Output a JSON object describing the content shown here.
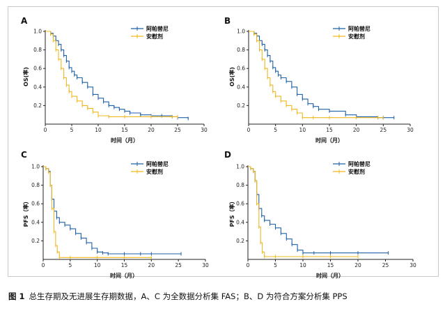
{
  "colors": {
    "drug": "#1f62a8",
    "placebo": "#f0b81f",
    "axis": "#222222"
  },
  "caption": {
    "label": "图 1",
    "text": "总生存期及无进展生存期数据，A、C 为全数据分析集 FAS；B、D 为符合方案分析集 PPS"
  },
  "chart_data": [
    {
      "type": "line",
      "panel": "A",
      "xlabel": "时间（月）",
      "ylabel": "OS(率)",
      "xlim": [
        0,
        30
      ],
      "ylim": [
        0,
        1.0
      ],
      "xticks": [
        0,
        5,
        10,
        15,
        20,
        25,
        30
      ],
      "yticks": [
        0.2,
        0.4,
        0.6,
        0.8,
        1.0
      ],
      "legend": [
        "阿帕替尼",
        "安慰剂"
      ],
      "series": [
        {
          "name": "阿帕替尼",
          "x": [
            0,
            1,
            1.5,
            2,
            2.5,
            3,
            3.5,
            4,
            4.5,
            5,
            5.5,
            6,
            7,
            8,
            9,
            10,
            11,
            12,
            13,
            14,
            15,
            16,
            18,
            20,
            22,
            24,
            25,
            27
          ],
          "y": [
            1.0,
            0.98,
            0.95,
            0.9,
            0.86,
            0.8,
            0.74,
            0.68,
            0.61,
            0.57,
            0.53,
            0.5,
            0.45,
            0.4,
            0.32,
            0.28,
            0.24,
            0.2,
            0.18,
            0.16,
            0.14,
            0.12,
            0.1,
            0.09,
            0.09,
            0.08,
            0.07,
            0.06
          ]
        },
        {
          "name": "安慰剂",
          "x": [
            0,
            1,
            1.5,
            2,
            2.5,
            3,
            3.5,
            4,
            4.5,
            5,
            6,
            7,
            8,
            9,
            10,
            12,
            15,
            20,
            24,
            25
          ],
          "y": [
            1.0,
            0.97,
            0.9,
            0.8,
            0.7,
            0.6,
            0.5,
            0.42,
            0.35,
            0.3,
            0.25,
            0.2,
            0.17,
            0.13,
            0.09,
            0.08,
            0.08,
            0.08,
            0.08,
            0.08
          ]
        }
      ]
    },
    {
      "type": "line",
      "panel": "B",
      "xlabel": "时间（月）",
      "ylabel": "OS(率)",
      "xlim": [
        0,
        30
      ],
      "ylim": [
        0,
        1.0
      ],
      "xticks": [
        0,
        5,
        10,
        15,
        20,
        25,
        30
      ],
      "yticks": [
        0.2,
        0.4,
        0.6,
        0.8,
        1.0
      ],
      "legend": [
        "阿帕替尼",
        "安慰剂"
      ],
      "series": [
        {
          "name": "阿帕替尼",
          "x": [
            0,
            1,
            1.5,
            2,
            2.5,
            3,
            3.5,
            4,
            4.5,
            5,
            5.5,
            6,
            7,
            8,
            9,
            10,
            11,
            12,
            13,
            15,
            18,
            20,
            24,
            25,
            27
          ],
          "y": [
            1.0,
            0.98,
            0.95,
            0.9,
            0.86,
            0.8,
            0.74,
            0.68,
            0.61,
            0.57,
            0.53,
            0.5,
            0.46,
            0.4,
            0.32,
            0.27,
            0.22,
            0.19,
            0.16,
            0.14,
            0.1,
            0.08,
            0.07,
            0.07,
            0.07
          ]
        },
        {
          "name": "安慰剂",
          "x": [
            0,
            1,
            1.5,
            2,
            2.5,
            3,
            3.5,
            4,
            4.5,
            5,
            6,
            7,
            8,
            9,
            10,
            12,
            15,
            20,
            24,
            25
          ],
          "y": [
            1.0,
            0.97,
            0.9,
            0.8,
            0.7,
            0.6,
            0.5,
            0.42,
            0.35,
            0.3,
            0.25,
            0.2,
            0.16,
            0.12,
            0.07,
            0.07,
            0.07,
            0.07,
            0.07,
            0.07
          ]
        }
      ]
    },
    {
      "type": "line",
      "panel": "C",
      "xlabel": "时间（月）",
      "ylabel": "PFS（率）",
      "xlim": [
        0,
        30
      ],
      "ylim": [
        0,
        1.0
      ],
      "xticks": [
        0,
        5,
        10,
        15,
        20,
        25,
        30
      ],
      "yticks": [
        0.2,
        0.4,
        0.6,
        0.8,
        1.0
      ],
      "legend": [
        "阿帕替尼",
        "安慰剂"
      ],
      "series": [
        {
          "name": "阿帕替尼",
          "x": [
            0,
            0.5,
            1,
            1.3,
            1.6,
            2,
            2.5,
            3,
            4,
            5,
            6,
            7,
            8,
            9,
            10,
            11,
            12,
            15,
            18,
            20,
            25.5
          ],
          "y": [
            1.0,
            0.98,
            0.95,
            0.8,
            0.65,
            0.52,
            0.45,
            0.4,
            0.37,
            0.33,
            0.28,
            0.23,
            0.18,
            0.12,
            0.08,
            0.07,
            0.06,
            0.06,
            0.06,
            0.06,
            0.06
          ]
        },
        {
          "name": "安慰剂",
          "x": [
            0,
            0.5,
            1,
            1.3,
            1.6,
            2,
            2.3,
            2.6,
            3,
            5,
            10,
            15,
            20
          ],
          "y": [
            1.0,
            0.98,
            0.94,
            0.8,
            0.55,
            0.3,
            0.15,
            0.08,
            0.02,
            0.02,
            0.02,
            0.02,
            0.02
          ]
        }
      ]
    },
    {
      "type": "line",
      "panel": "D",
      "xlabel": "时间（月）",
      "ylabel": "PFS（率）",
      "xlim": [
        0,
        30
      ],
      "ylim": [
        0,
        1.0
      ],
      "xticks": [
        0,
        5,
        10,
        15,
        20,
        25,
        30
      ],
      "yticks": [
        0.2,
        0.4,
        0.6,
        0.8,
        1.0
      ],
      "legend": [
        "阿帕替尼",
        "安慰剂"
      ],
      "series": [
        {
          "name": "阿帕替尼",
          "x": [
            0,
            0.5,
            1,
            1.3,
            1.6,
            2,
            2.5,
            3,
            4,
            5,
            6,
            7,
            8,
            9,
            10,
            12,
            15,
            20,
            25.5
          ],
          "y": [
            1.0,
            0.98,
            0.95,
            0.85,
            0.7,
            0.55,
            0.47,
            0.42,
            0.38,
            0.34,
            0.28,
            0.22,
            0.16,
            0.1,
            0.07,
            0.07,
            0.07,
            0.07,
            0.07
          ]
        },
        {
          "name": "安慰剂",
          "x": [
            0,
            0.5,
            1,
            1.3,
            1.6,
            2,
            2.3,
            2.6,
            3,
            5,
            10,
            15,
            20
          ],
          "y": [
            1.0,
            0.98,
            0.95,
            0.85,
            0.6,
            0.35,
            0.18,
            0.08,
            0.03,
            0.03,
            0.03,
            0.03,
            0.03
          ]
        }
      ]
    }
  ]
}
